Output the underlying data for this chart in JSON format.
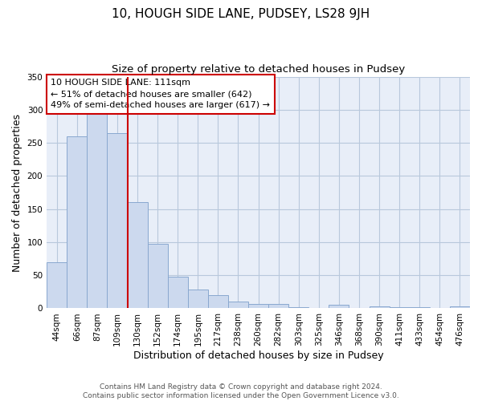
{
  "title": "10, HOUGH SIDE LANE, PUDSEY, LS28 9JH",
  "subtitle": "Size of property relative to detached houses in Pudsey",
  "xlabel": "Distribution of detached houses by size in Pudsey",
  "ylabel": "Number of detached properties",
  "bar_labels": [
    "44sqm",
    "66sqm",
    "87sqm",
    "109sqm",
    "130sqm",
    "152sqm",
    "174sqm",
    "195sqm",
    "217sqm",
    "238sqm",
    "260sqm",
    "282sqm",
    "303sqm",
    "325sqm",
    "346sqm",
    "368sqm",
    "390sqm",
    "411sqm",
    "433sqm",
    "454sqm",
    "476sqm"
  ],
  "bar_values": [
    70,
    260,
    295,
    265,
    160,
    97,
    48,
    28,
    20,
    10,
    7,
    7,
    2,
    1,
    6,
    1,
    3,
    2,
    2,
    1,
    3
  ],
  "bar_color": "#ccd9ee",
  "bar_edge_color": "#89a8cf",
  "vline_x_index": 3,
  "vline_color": "#cc0000",
  "annotation_text": "10 HOUGH SIDE LANE: 111sqm\n← 51% of detached houses are smaller (642)\n49% of semi-detached houses are larger (617) →",
  "annotation_box_color": "#ffffff",
  "annotation_box_edge_color": "#cc0000",
  "ylim": [
    0,
    350
  ],
  "yticks": [
    0,
    50,
    100,
    150,
    200,
    250,
    300,
    350
  ],
  "footer_text": "Contains HM Land Registry data © Crown copyright and database right 2024.\nContains public sector information licensed under the Open Government Licence v3.0.",
  "background_color": "#ffffff",
  "plot_background_color": "#e8eef8",
  "grid_color": "#b8c8dc",
  "title_fontsize": 11,
  "subtitle_fontsize": 9.5,
  "axis_label_fontsize": 9,
  "tick_fontsize": 7.5,
  "footer_fontsize": 6.5,
  "annotation_fontsize": 8
}
